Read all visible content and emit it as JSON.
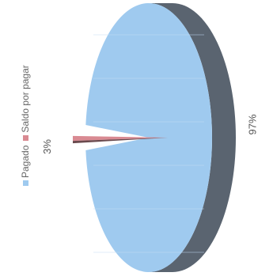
{
  "chart_data": {
    "type": "pie",
    "title": "",
    "legend_position": "left",
    "categories": [
      "Pagado",
      "Saldo por pagar"
    ],
    "values": [
      97,
      3
    ],
    "labels": [
      "97%",
      "3%"
    ],
    "colors": {
      "Pagado": "#9fcaef",
      "Pagado_side": "#5a6470",
      "Saldo por pagar": "#d98a92"
    }
  }
}
